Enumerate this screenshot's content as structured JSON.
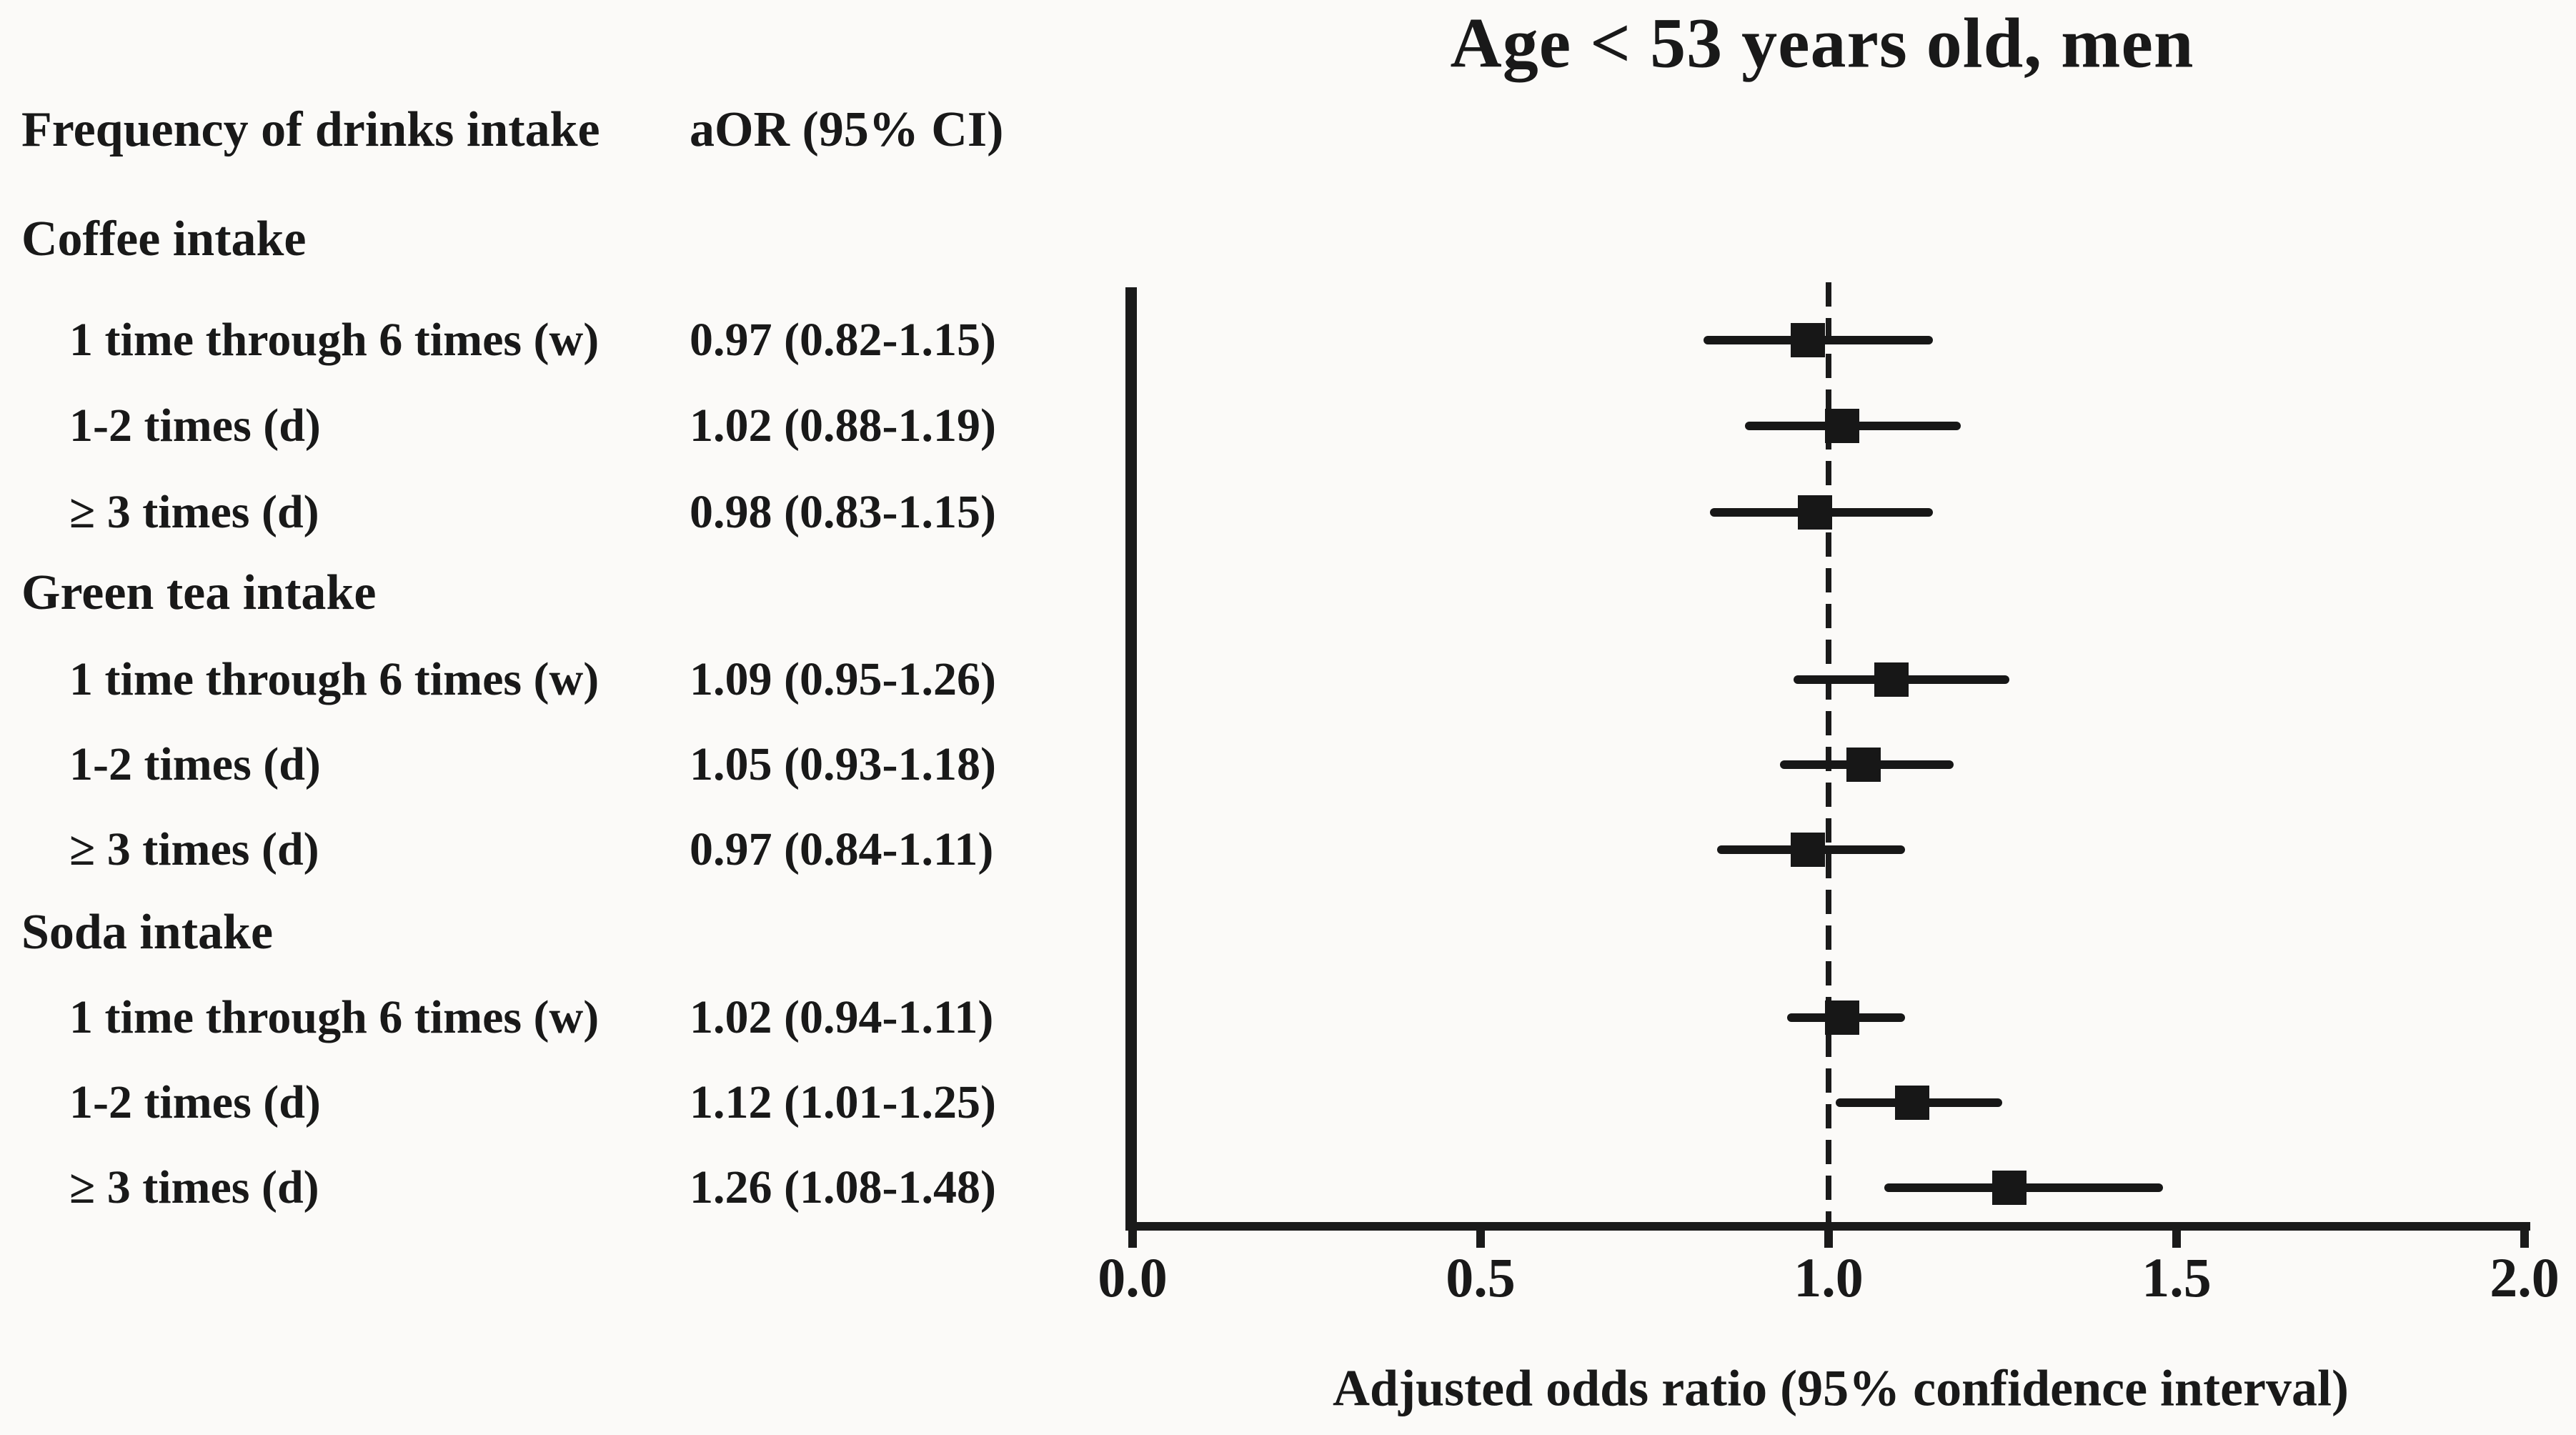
{
  "title": "Age < 53 years old, men",
  "columns": {
    "label_header": "Frequency of drinks intake",
    "aor_header": "aOR (95% CI)"
  },
  "table": {
    "rows": [
      {
        "type": "section",
        "label": "Coffee intake"
      },
      {
        "type": "item",
        "label": "1 time through 6 times (w)",
        "aor": "0.97 (0.82-1.15)"
      },
      {
        "type": "item",
        "label": "1-2 times (d)",
        "aor": "1.02 (0.88-1.19)"
      },
      {
        "type": "item",
        "label": "≥ 3 times (d)",
        "aor": "0.98 (0.83-1.15)"
      },
      {
        "type": "section",
        "label": "Green tea intake"
      },
      {
        "type": "item",
        "label": "1 time through 6 times (w)",
        "aor": "1.09 (0.95-1.26)"
      },
      {
        "type": "item",
        "label": "1-2 times (d)",
        "aor": "1.05 (0.93-1.18)"
      },
      {
        "type": "item",
        "label": "≥ 3 times (d)",
        "aor": "0.97 (0.84-1.11)"
      },
      {
        "type": "section",
        "label": "Soda intake"
      },
      {
        "type": "item",
        "label": "1 time through 6 times (w)",
        "aor": "1.02 (0.94-1.11)"
      },
      {
        "type": "item",
        "label": "1-2 times (d)",
        "aor": "1.12 (1.01-1.25)"
      },
      {
        "type": "item",
        "label": "≥ 3 times (d)",
        "aor": "1.26 (1.08-1.48)"
      }
    ]
  },
  "chart_data": {
    "type": "scatter",
    "subtype": "forest-plot",
    "title": "Age < 53 years old, men",
    "xlabel": "Adjusted odds ratio (95% confidence interval)",
    "ylabel": "",
    "xlim": [
      0.0,
      2.0
    ],
    "x_ticks": [
      "0.0",
      "0.5",
      "1.0",
      "1.5",
      "2.0"
    ],
    "reference_line_x": 1.0,
    "reference_line_style": "dashed",
    "grid": false,
    "legend": "none",
    "marker": "filled-square",
    "series": [
      {
        "name": "Coffee intake",
        "points": [
          {
            "label": "1 time through 6 times (w)",
            "or": 0.97,
            "ci_low": 0.82,
            "ci_high": 1.15
          },
          {
            "label": "1-2 times (d)",
            "or": 1.02,
            "ci_low": 0.88,
            "ci_high": 1.19
          },
          {
            "label": "≥ 3 times (d)",
            "or": 0.98,
            "ci_low": 0.83,
            "ci_high": 1.15
          }
        ]
      },
      {
        "name": "Green tea intake",
        "points": [
          {
            "label": "1 time through 6 times (w)",
            "or": 1.09,
            "ci_low": 0.95,
            "ci_high": 1.26
          },
          {
            "label": "1-2 times (d)",
            "or": 1.05,
            "ci_low": 0.93,
            "ci_high": 1.18
          },
          {
            "label": "≥ 3 times (d)",
            "or": 0.97,
            "ci_low": 0.84,
            "ci_high": 1.11
          }
        ]
      },
      {
        "name": "Soda intake",
        "points": [
          {
            "label": "1 time through 6 times (w)",
            "or": 1.02,
            "ci_low": 0.94,
            "ci_high": 1.11
          },
          {
            "label": "1-2 times (d)",
            "or": 1.12,
            "ci_low": 1.01,
            "ci_high": 1.25
          },
          {
            "label": "≥ 3 times (d)",
            "or": 1.26,
            "ci_low": 1.08,
            "ci_high": 1.48
          }
        ]
      }
    ]
  }
}
